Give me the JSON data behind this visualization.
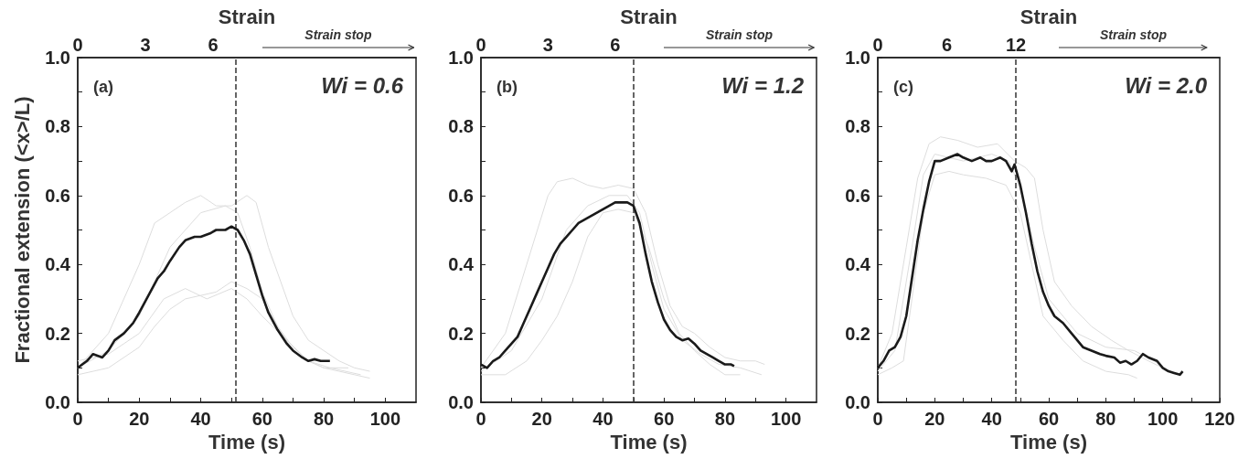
{
  "chart_data": [
    {
      "type": "line",
      "xlabel": "Time (s)",
      "ylabel": "Fractional extension (<x>/L)",
      "x2label": "Strain",
      "marker": "none",
      "xlim": [
        0,
        110
      ],
      "xticks": [
        0,
        {
          "value": 10,
          "label": null
        },
        20,
        {
          "value": 30,
          "label": null
        },
        40,
        {
          "value": 50,
          "label": null
        },
        60,
        {
          "value": 70,
          "label": null
        },
        80,
        {
          "value": 90,
          "label": null
        },
        100
      ],
      "x2lim": [
        0,
        15
      ],
      "x2ticks": [
        0,
        3,
        6
      ],
      "ylim": [
        0,
        1
      ],
      "yticks": [
        {
          "value": 0,
          "label": "0.0"
        },
        {
          "value": 0.1,
          "label": null
        },
        {
          "value": 0.2,
          "label": "0.2"
        },
        {
          "value": 0.3,
          "label": null
        },
        {
          "value": 0.4,
          "label": "0.4"
        },
        {
          "value": 0.5,
          "label": null
        },
        {
          "value": 0.6,
          "label": "0.6"
        },
        {
          "value": 0.7,
          "label": null
        },
        {
          "value": 0.8,
          "label": "0.8"
        },
        {
          "value": 0.9,
          "label": null
        },
        {
          "value": 1,
          "label": "1.0"
        }
      ],
      "annotations": [
        "(a)",
        "Wi = 0.6",
        "Strain stop"
      ],
      "ref_lines": [
        {
          "axis": "x",
          "value": 51.5,
          "color": "#333333",
          "line_style": "dashed"
        }
      ],
      "series": [
        {
          "color": "#dddddd",
          "x": [
            0,
            10,
            20,
            25,
            30,
            35,
            40,
            45,
            50,
            55,
            58,
            62,
            66,
            70,
            75,
            80,
            85,
            90,
            95
          ],
          "values": [
            0.1,
            0.2,
            0.4,
            0.52,
            0.55,
            0.58,
            0.6,
            0.57,
            0.57,
            0.6,
            0.58,
            0.45,
            0.35,
            0.25,
            0.18,
            0.15,
            0.12,
            0.1,
            0.09
          ]
        },
        {
          "color": "#dddddd",
          "x": [
            0,
            10,
            20,
            25,
            30,
            35,
            40,
            45,
            50,
            55,
            60,
            65,
            70,
            75,
            80,
            85,
            90,
            95
          ],
          "values": [
            0.08,
            0.1,
            0.16,
            0.22,
            0.27,
            0.3,
            0.31,
            0.32,
            0.35,
            0.33,
            0.3,
            0.22,
            0.16,
            0.12,
            0.1,
            0.09,
            0.08,
            0.07
          ]
        },
        {
          "color": "#dddddd",
          "x": [
            0,
            10,
            20,
            30,
            40,
            48,
            52,
            56,
            60,
            65,
            70,
            75,
            80,
            88
          ],
          "values": [
            0.1,
            0.15,
            0.25,
            0.45,
            0.55,
            0.57,
            0.55,
            0.45,
            0.32,
            0.22,
            0.15,
            0.12,
            0.1,
            0.1
          ]
        },
        {
          "color": "#dddddd",
          "x": [
            0,
            10,
            20,
            28,
            35,
            42,
            50,
            55,
            60,
            68,
            75,
            82,
            92
          ],
          "values": [
            0.12,
            0.14,
            0.2,
            0.3,
            0.33,
            0.3,
            0.33,
            0.3,
            0.25,
            0.18,
            0.12,
            0.1,
            0.08
          ]
        },
        {
          "color": "#1a1a1a",
          "x": [
            0,
            3,
            5,
            8,
            10,
            12,
            15,
            18,
            20,
            23,
            26,
            28,
            30,
            33,
            35,
            38,
            40,
            43,
            45,
            48,
            50,
            52,
            54,
            56,
            58,
            60,
            62,
            65,
            68,
            70,
            73,
            75,
            77,
            79,
            81,
            82
          ],
          "values": [
            0.1,
            0.12,
            0.14,
            0.13,
            0.15,
            0.18,
            0.2,
            0.23,
            0.26,
            0.31,
            0.36,
            0.38,
            0.41,
            0.45,
            0.47,
            0.48,
            0.48,
            0.49,
            0.5,
            0.5,
            0.51,
            0.5,
            0.47,
            0.43,
            0.37,
            0.31,
            0.26,
            0.21,
            0.17,
            0.15,
            0.13,
            0.12,
            0.125,
            0.12,
            0.12,
            0.12
          ]
        }
      ]
    },
    {
      "type": "line",
      "xlabel": "Time (s)",
      "x2label": "Strain",
      "marker": "none",
      "xlim": [
        0,
        110
      ],
      "xticks": [
        0,
        {
          "value": 10,
          "label": null
        },
        20,
        {
          "value": 30,
          "label": null
        },
        40,
        {
          "value": 50,
          "label": null
        },
        60,
        {
          "value": 70,
          "label": null
        },
        80,
        {
          "value": 90,
          "label": null
        },
        100
      ],
      "x2lim": [
        0,
        15
      ],
      "x2ticks": [
        0,
        3,
        6
      ],
      "ylim": [
        0,
        1
      ],
      "yticks": [
        {
          "value": 0,
          "label": "0.0"
        },
        {
          "value": 0.1,
          "label": null
        },
        {
          "value": 0.2,
          "label": "0.2"
        },
        {
          "value": 0.3,
          "label": null
        },
        {
          "value": 0.4,
          "label": "0.4"
        },
        {
          "value": 0.5,
          "label": null
        },
        {
          "value": 0.6,
          "label": "0.6"
        },
        {
          "value": 0.7,
          "label": null
        },
        {
          "value": 0.8,
          "label": "0.8"
        },
        {
          "value": 0.9,
          "label": null
        },
        {
          "value": 1,
          "label": "1.0"
        }
      ],
      "annotations": [
        "(b)",
        "Wi = 1.2",
        "Strain stop"
      ],
      "ref_lines": [
        {
          "axis": "x",
          "value": 50,
          "color": "#333333",
          "line_style": "dashed"
        }
      ],
      "series": [
        {
          "color": "#dddddd",
          "x": [
            0,
            8,
            15,
            22,
            25,
            30,
            35,
            40,
            45,
            50,
            54,
            58,
            62,
            66,
            70,
            75,
            80,
            85,
            90,
            93
          ],
          "values": [
            0.1,
            0.2,
            0.4,
            0.6,
            0.64,
            0.65,
            0.63,
            0.62,
            0.63,
            0.62,
            0.55,
            0.4,
            0.28,
            0.22,
            0.2,
            0.16,
            0.13,
            0.12,
            0.12,
            0.11
          ]
        },
        {
          "color": "#dddddd",
          "x": [
            0,
            8,
            15,
            20,
            25,
            30,
            35,
            40,
            45,
            50,
            55,
            60,
            65,
            70,
            75,
            80,
            85
          ],
          "values": [
            0.08,
            0.08,
            0.12,
            0.18,
            0.25,
            0.35,
            0.48,
            0.55,
            0.56,
            0.55,
            0.45,
            0.3,
            0.2,
            0.15,
            0.11,
            0.08,
            0.08
          ]
        },
        {
          "color": "#dddddd",
          "x": [
            0,
            10,
            20,
            28,
            35,
            42,
            48,
            52,
            56,
            60,
            66,
            72,
            78,
            85,
            92
          ],
          "values": [
            0.09,
            0.15,
            0.3,
            0.5,
            0.57,
            0.6,
            0.6,
            0.55,
            0.4,
            0.27,
            0.18,
            0.14,
            0.11,
            0.1,
            0.08
          ]
        },
        {
          "color": "#1a1a1a",
          "x": [
            0,
            2,
            4,
            6,
            8,
            10,
            12,
            14,
            16,
            18,
            20,
            22,
            24,
            26,
            28,
            30,
            32,
            34,
            36,
            38,
            40,
            42,
            44,
            46,
            48,
            50,
            52,
            54,
            56,
            58,
            60,
            62,
            64,
            66,
            68,
            70,
            72,
            74,
            76,
            78,
            80,
            82,
            83
          ],
          "values": [
            0.11,
            0.1,
            0.12,
            0.13,
            0.15,
            0.17,
            0.19,
            0.23,
            0.27,
            0.31,
            0.35,
            0.39,
            0.43,
            0.46,
            0.48,
            0.5,
            0.52,
            0.53,
            0.54,
            0.55,
            0.56,
            0.57,
            0.58,
            0.58,
            0.58,
            0.57,
            0.52,
            0.43,
            0.35,
            0.29,
            0.24,
            0.21,
            0.19,
            0.18,
            0.185,
            0.17,
            0.15,
            0.14,
            0.13,
            0.12,
            0.11,
            0.11,
            0.105
          ]
        }
      ]
    },
    {
      "type": "line",
      "xlabel": "Time (s)",
      "x2label": "Strain",
      "marker": "none",
      "xlim": [
        0,
        120
      ],
      "xticks": [
        0,
        {
          "value": 10,
          "label": null
        },
        20,
        {
          "value": 30,
          "label": null
        },
        40,
        {
          "value": 50,
          "label": null
        },
        60,
        {
          "value": 70,
          "label": null
        },
        80,
        {
          "value": 90,
          "label": null
        },
        100,
        {
          "value": 110,
          "label": null
        },
        120
      ],
      "x2lim": [
        0,
        29.7
      ],
      "x2ticks": [
        0,
        6,
        12
      ],
      "ylim": [
        0,
        1
      ],
      "yticks": [
        {
          "value": 0,
          "label": "0.0"
        },
        {
          "value": 0.1,
          "label": null
        },
        {
          "value": 0.2,
          "label": "0.2"
        },
        {
          "value": 0.3,
          "label": null
        },
        {
          "value": 0.4,
          "label": "0.4"
        },
        {
          "value": 0.5,
          "label": null
        },
        {
          "value": 0.6,
          "label": "0.6"
        },
        {
          "value": 0.7,
          "label": null
        },
        {
          "value": 0.8,
          "label": "0.8"
        },
        {
          "value": 0.9,
          "label": null
        },
        {
          "value": 1,
          "label": "1.0"
        }
      ],
      "annotations": [
        "(c)",
        "Wi = 2.0",
        "Strain stop"
      ],
      "ref_lines": [
        {
          "axis": "x",
          "value": 48.5,
          "color": "#333333",
          "line_style": "dashed"
        }
      ],
      "series": [
        {
          "color": "#dddddd",
          "x": [
            0,
            5,
            10,
            14,
            18,
            22,
            28,
            35,
            42,
            48,
            52,
            55,
            58,
            62,
            68,
            75,
            82,
            88,
            95,
            100
          ],
          "values": [
            0.1,
            0.2,
            0.45,
            0.65,
            0.75,
            0.77,
            0.76,
            0.74,
            0.75,
            0.7,
            0.68,
            0.65,
            0.5,
            0.35,
            0.28,
            0.22,
            0.18,
            0.15,
            0.12,
            0.1
          ]
        },
        {
          "color": "#dddddd",
          "x": [
            0,
            5,
            9,
            12,
            16,
            20,
            25,
            30,
            38,
            45,
            50,
            54,
            58,
            65,
            72,
            80,
            88,
            91
          ],
          "values": [
            0.08,
            0.1,
            0.12,
            0.3,
            0.55,
            0.66,
            0.67,
            0.66,
            0.65,
            0.63,
            0.55,
            0.4,
            0.25,
            0.18,
            0.12,
            0.09,
            0.08,
            0.07
          ]
        },
        {
          "color": "#dddddd",
          "x": [
            0,
            6,
            12,
            16,
            20,
            30,
            40,
            46,
            50,
            55,
            60,
            70,
            80,
            90,
            97,
            100
          ],
          "values": [
            0.09,
            0.15,
            0.45,
            0.66,
            0.72,
            0.7,
            0.72,
            0.7,
            0.62,
            0.45,
            0.3,
            0.2,
            0.16,
            0.15,
            0.12,
            0.1
          ]
        },
        {
          "color": "#1a1a1a",
          "x": [
            0,
            2,
            4,
            6,
            8,
            10,
            12,
            14,
            16,
            18,
            20,
            22,
            25,
            28,
            30,
            33,
            36,
            38,
            40,
            43,
            45,
            47,
            48,
            50,
            52,
            54,
            56,
            58,
            60,
            62,
            65,
            68,
            70,
            72,
            75,
            78,
            80,
            83,
            85,
            87,
            89,
            91,
            93,
            95,
            98,
            100,
            102,
            104,
            106,
            107
          ],
          "values": [
            0.1,
            0.12,
            0.15,
            0.16,
            0.19,
            0.25,
            0.36,
            0.47,
            0.56,
            0.64,
            0.7,
            0.7,
            0.71,
            0.72,
            0.71,
            0.7,
            0.71,
            0.7,
            0.7,
            0.71,
            0.7,
            0.67,
            0.69,
            0.63,
            0.55,
            0.46,
            0.38,
            0.32,
            0.28,
            0.25,
            0.23,
            0.2,
            0.18,
            0.16,
            0.15,
            0.14,
            0.135,
            0.13,
            0.115,
            0.12,
            0.11,
            0.12,
            0.14,
            0.13,
            0.12,
            0.1,
            0.09,
            0.085,
            0.08,
            0.09
          ]
        }
      ]
    }
  ]
}
